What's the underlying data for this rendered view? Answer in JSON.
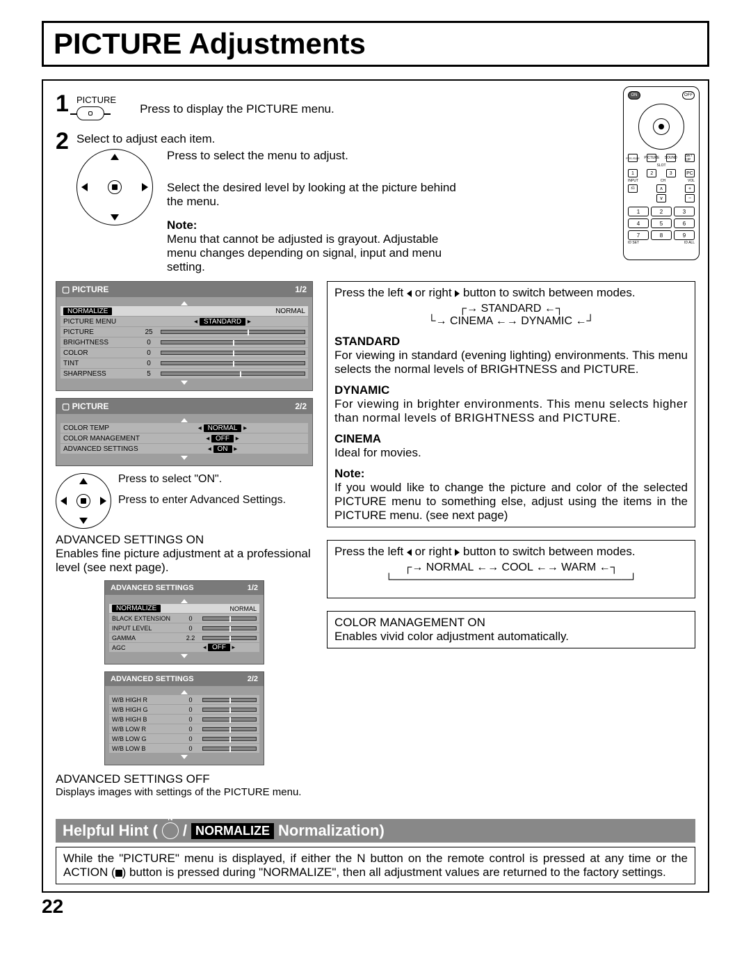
{
  "page": {
    "title": "PICTURE Adjustments",
    "number": "22"
  },
  "steps": {
    "one": {
      "num": "1",
      "btn_label": "PICTURE",
      "text": "Press to display the PICTURE menu."
    },
    "two": {
      "num": "2",
      "intro": "Select to adjust each item.",
      "line1": "Press to select the menu to adjust.",
      "line2": "Select the desired level by looking at the picture behind the menu.",
      "note_label": "Note:",
      "note_text": "Menu that cannot be adjusted is grayout. Adjustable menu changes depending on signal, input and menu setting."
    }
  },
  "osd1": {
    "title": "PICTURE",
    "page": "1/2",
    "normalize": "NORMALIZE",
    "normal": "NORMAL",
    "rows": [
      {
        "name": "PICTURE MENU",
        "val": "",
        "pill": "STANDARD",
        "pos": 50
      },
      {
        "name": "PICTURE",
        "val": "25",
        "pos": 60
      },
      {
        "name": "BRIGHTNESS",
        "val": "0",
        "pos": 50
      },
      {
        "name": "COLOR",
        "val": "0",
        "pos": 50
      },
      {
        "name": "TINT",
        "val": "0",
        "pos": 50
      },
      {
        "name": "SHARPNESS",
        "val": "5",
        "pos": 55
      }
    ]
  },
  "osd2": {
    "title": "PICTURE",
    "page": "2/2",
    "rows": [
      {
        "name": "COLOR TEMP",
        "pill": "NORMAL"
      },
      {
        "name": "COLOR MANAGEMENT",
        "pill": "OFF"
      },
      {
        "name": "ADVANCED SETTINGS",
        "pill": "ON"
      }
    ]
  },
  "adv_hints": {
    "on_select": "Press to select \"ON\".",
    "enter": "Press to enter Advanced Settings."
  },
  "adv_on": {
    "heading": "ADVANCED SETTINGS ON",
    "text": "Enables fine picture adjustment at a professional level (see next page)."
  },
  "osd3": {
    "title": "ADVANCED SETTINGS",
    "page": "1/2",
    "normalize": "NORMALIZE",
    "normal": "NORMAL",
    "rows": [
      {
        "name": "BLACK EXTENSION",
        "val": "0",
        "pos": 50
      },
      {
        "name": "INPUT LEVEL",
        "val": "0",
        "pos": 50
      },
      {
        "name": "GAMMA",
        "val": "2.2",
        "pos": 50
      },
      {
        "name": "AGC",
        "pill": "OFF"
      }
    ]
  },
  "osd4": {
    "title": "ADVANCED SETTINGS",
    "page": "2/2",
    "rows": [
      {
        "name": "W/B HIGH R",
        "val": "0",
        "pos": 50
      },
      {
        "name": "W/B HIGH G",
        "val": "0",
        "pos": 50
      },
      {
        "name": "W/B HIGH B",
        "val": "0",
        "pos": 50
      },
      {
        "name": "W/B LOW R",
        "val": "0",
        "pos": 50
      },
      {
        "name": "W/B LOW G",
        "val": "0",
        "pos": 50
      },
      {
        "name": "W/B LOW B",
        "val": "0",
        "pos": 50
      }
    ]
  },
  "adv_off": {
    "heading": "ADVANCED SETTINGS OFF",
    "text": "Displays images with settings of the PICTURE menu."
  },
  "right": {
    "modes": {
      "intro_a": "Press the left ",
      "intro_b": " or right ",
      "intro_c": " button to switch between modes.",
      "standard": "STANDARD",
      "cinema": "CINEMA",
      "dynamic": "DYNAMIC",
      "std_h": "STANDARD",
      "std_t": "For viewing in standard (evening lighting) environments. This menu selects the normal levels of BRIGHTNESS and PICTURE.",
      "dyn_h": "DYNAMIC",
      "dyn_t": "For viewing in brighter environments. This menu selects higher than normal levels of BRIGHTNESS and PICTURE.",
      "cin_h": "CINEMA",
      "cin_t": "Ideal for movies.",
      "note_h": "Note:",
      "note_t": "If you would like to change the picture and color of the selected PICTURE menu to something else, adjust using the items in the PICTURE menu. (see next page)"
    },
    "temp": {
      "intro_a": "Press the left ",
      "intro_b": " or right ",
      "intro_c": " button to switch between modes.",
      "normal": "NORMAL",
      "cool": "COOL",
      "warm": "WARM"
    },
    "colmgmt": {
      "heading": "COLOR MANAGEMENT ON",
      "text": "Enables vivid color adjustment automatically."
    }
  },
  "hint": {
    "prefix": "Helpful Hint (",
    "mid": " / ",
    "norm": "NORMALIZE",
    "suffix": " Normalization)",
    "body_a": "While the \"PICTURE\" menu is displayed, if either the N button on the remote control is pressed at any time or the ACTION (",
    "body_b": ") button is pressed during \"NORMALIZE\", then all adjustment values are returned to the factory settings."
  },
  "remote": {
    "on": "ON",
    "off": "OFF",
    "menubtns": [
      "POS./SIZE",
      "PICTURE",
      "SOUND",
      "SET UP"
    ],
    "slot": "SLOT",
    "pc": "PC",
    "input": "INPUT",
    "ch": "CH",
    "vol": "VOL",
    "keys": [
      "1",
      "2",
      "3",
      "4",
      "5",
      "6",
      "7",
      "8",
      "9"
    ],
    "idset": "ID SET",
    "idall": "ID ALL"
  },
  "colors": {
    "osd_bg": "#9e9e9e",
    "osd_hdr": "#7a7a7a",
    "osd_row": "#b5b5b5",
    "hint_bg": "#888888",
    "text": "#000000"
  }
}
